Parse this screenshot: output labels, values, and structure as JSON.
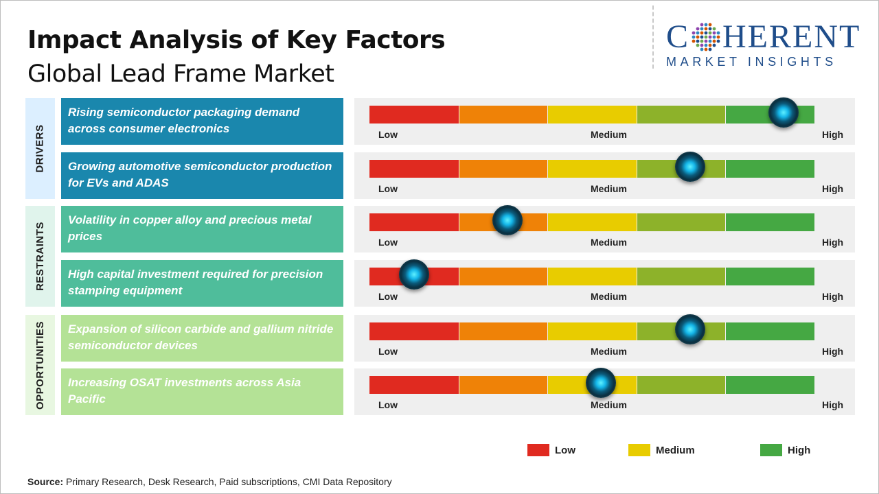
{
  "header": {
    "title": "Impact Analysis of Key Factors",
    "subtitle": "Global Lead Frame Market"
  },
  "logo": {
    "word_start": "C",
    "word_end": "HERENT",
    "tagline": "MARKET INSIGHTS",
    "color": "#1f4d8a"
  },
  "scale_labels": {
    "low": "Low",
    "medium": "Medium",
    "high": "High"
  },
  "segment_colors": [
    "#e02a20",
    "#ef8207",
    "#e8cc00",
    "#8db22a",
    "#45a843"
  ],
  "categories": [
    {
      "label": "DRIVERS",
      "color": "#dcefff"
    },
    {
      "label": "RESTRAINTS",
      "color": "#e0f4ec"
    },
    {
      "label": "OPPORTUNITIES",
      "color": "#e8f7e1"
    }
  ],
  "factors": [
    {
      "text": "Rising semiconductor packaging demand across consumer electronics",
      "color": "#1a87ad"
    },
    {
      "text": "Growing automotive semiconductor production for EVs and ADAS",
      "color": "#1a87ad"
    },
    {
      "text": "Volatility in copper alloy and precious metal prices",
      "color": "#4fbd9b"
    },
    {
      "text": "High capital investment required for precision stamping equipment",
      "color": "#4fbd9b"
    },
    {
      "text": "Expansion of silicon carbide and gallium nitride semiconductor devices",
      "color": "#b4e296"
    },
    {
      "text": "Increasing OSAT investments across Asia Pacific",
      "color": "#b4e296"
    }
  ],
  "legend": [
    {
      "label": "Low",
      "color": "#e02a20"
    },
    {
      "label": "Medium",
      "color": "#e8cc00"
    },
    {
      "label": "High",
      "color": "#45a843"
    }
  ],
  "source": {
    "label": "Source:",
    "text": "Primary Research, Desk Research, Paid subscriptions, CMI Data Repository"
  },
  "chart_data": {
    "type": "table",
    "scale": [
      "Low",
      "Medium",
      "High"
    ],
    "rows": [
      {
        "category": "DRIVERS",
        "factor": "Rising semiconductor packaging demand across consumer electronics",
        "impact": 0.93
      },
      {
        "category": "DRIVERS",
        "factor": "Growing automotive semiconductor production for EVs and ADAS",
        "impact": 0.72
      },
      {
        "category": "RESTRAINTS",
        "factor": "Volatility in copper alloy and precious metal prices",
        "impact": 0.31
      },
      {
        "category": "RESTRAINTS",
        "factor": "High capital investment required for precision stamping equipment",
        "impact": 0.1
      },
      {
        "category": "OPPORTUNITIES",
        "factor": "Expansion of silicon carbide and gallium nitride semiconductor devices",
        "impact": 0.72
      },
      {
        "category": "OPPORTUNITIES",
        "factor": "Increasing OSAT investments across Asia Pacific",
        "impact": 0.52
      }
    ]
  }
}
